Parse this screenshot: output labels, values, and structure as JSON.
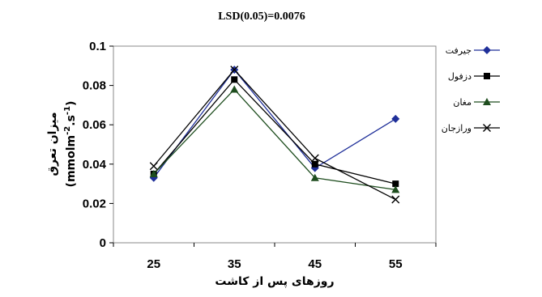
{
  "chart_data": {
    "type": "line",
    "title": "LSD(0.05)=0.0076",
    "xlabel": "روزهای پس از کاشت",
    "ylabel": "میزان تعرق",
    "ylabel_unit_main": "(mmolm",
    "ylabel_unit_sup1": "-2",
    "ylabel_unit_mid": ".s",
    "ylabel_unit_sup2": "-1",
    "ylabel_unit_end": ")",
    "categories": [
      "25",
      "35",
      "45",
      "55"
    ],
    "ylim": [
      0,
      0.1
    ],
    "yticks": [
      0,
      0.02,
      0.04,
      0.06,
      0.08,
      0.1
    ],
    "ytick_labels": [
      "0",
      "0.02",
      "0.04",
      "0.06",
      "0.08",
      "0.1"
    ],
    "legend_position": "right",
    "series": [
      {
        "name": "جیرفت",
        "values": [
          0.033,
          0.088,
          0.038,
          0.063
        ],
        "color": "#1f2f99",
        "marker": "diamond"
      },
      {
        "name": "دزفول",
        "values": [
          0.035,
          0.083,
          0.04,
          0.03
        ],
        "color": "#000000",
        "marker": "square"
      },
      {
        "name": "مغان",
        "values": [
          0.035,
          0.078,
          0.033,
          0.027
        ],
        "color": "#1e4d1e",
        "marker": "triangle"
      },
      {
        "name": "ورازجان",
        "values": [
          0.039,
          0.088,
          0.043,
          0.022
        ],
        "color": "#000000",
        "marker": "x"
      }
    ]
  }
}
